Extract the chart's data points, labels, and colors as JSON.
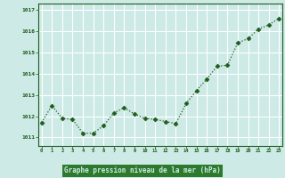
{
  "x": [
    0,
    1,
    2,
    3,
    4,
    5,
    6,
    7,
    8,
    9,
    10,
    11,
    12,
    13,
    14,
    15,
    16,
    17,
    18,
    19,
    20,
    21,
    22,
    23
  ],
  "y": [
    1011.7,
    1012.5,
    1011.9,
    1011.85,
    1011.2,
    1011.2,
    1011.55,
    1012.15,
    1012.4,
    1012.1,
    1011.9,
    1011.85,
    1011.75,
    1011.65,
    1012.6,
    1013.2,
    1013.75,
    1014.35,
    1014.4,
    1015.45,
    1015.65,
    1016.1,
    1016.3,
    1016.6
  ],
  "line_color": "#1e5c1e",
  "marker": "D",
  "markersize": 2.5,
  "linewidth": 0.9,
  "background_color": "#cdeae6",
  "plot_bg_color": "#cdeae6",
  "grid_color": "#ffffff",
  "xlabel": "Graphe pression niveau de la mer (hPa)",
  "xlabel_color": "#1e5c1e",
  "tick_color": "#1e5c1e",
  "bottom_bar_color": "#2d7a2d",
  "ytick_labels": [
    "1011",
    "1012",
    "1013",
    "1014",
    "1015",
    "1016",
    "1017"
  ],
  "ytick_vals": [
    1011,
    1012,
    1013,
    1014,
    1015,
    1016,
    1017
  ],
  "xtick_vals": [
    0,
    1,
    2,
    3,
    4,
    5,
    6,
    7,
    8,
    9,
    10,
    11,
    12,
    13,
    14,
    15,
    16,
    17,
    18,
    19,
    20,
    21,
    22,
    23
  ],
  "ylim": [
    1010.6,
    1017.3
  ],
  "xlim": [
    -0.3,
    23.3
  ]
}
